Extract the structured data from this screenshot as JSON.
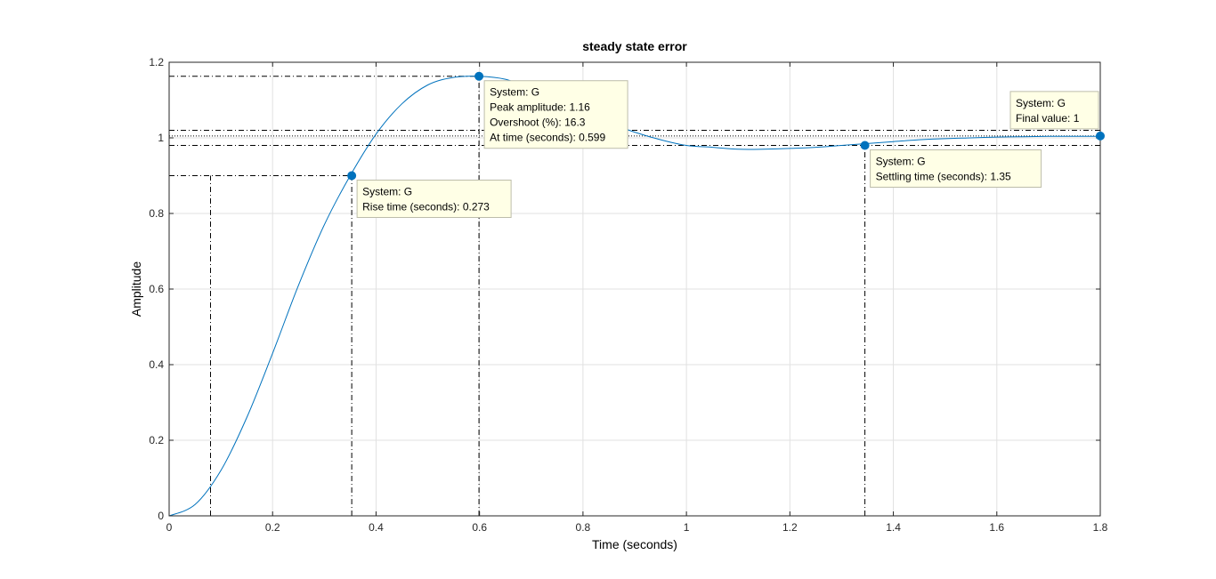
{
  "chart_data": {
    "type": "line",
    "title": "steady state error",
    "xlabel": "Time (seconds)",
    "ylabel": "Amplitude",
    "xlim": [
      0,
      1.8
    ],
    "ylim": [
      0,
      1.2
    ],
    "xticks": [
      "0",
      "0.2",
      "0.4",
      "0.6",
      "0.8",
      "1",
      "1.2",
      "1.4",
      "1.6",
      "1.8"
    ],
    "yticks": [
      "0",
      "0.2",
      "0.4",
      "0.6",
      "0.8",
      "1",
      "1.2"
    ],
    "grid": true,
    "series": [
      {
        "x": [
          0,
          0.05,
          0.1,
          0.15,
          0.2,
          0.25,
          0.3,
          0.35,
          0.4,
          0.45,
          0.5,
          0.55,
          0.6,
          0.65,
          0.7,
          0.75,
          0.8,
          0.85,
          0.9,
          0.95,
          1.0,
          1.05,
          1.1,
          1.15,
          1.2,
          1.25,
          1.3,
          1.35,
          1.4,
          1.45,
          1.5,
          1.55,
          1.6,
          1.65,
          1.7,
          1.75,
          1.8
        ],
        "y": [
          0,
          0.03,
          0.12,
          0.26,
          0.43,
          0.61,
          0.77,
          0.9,
          1.01,
          1.09,
          1.14,
          1.16,
          1.163,
          1.155,
          1.13,
          1.1,
          1.07,
          1.04,
          1.015,
          0.995,
          0.98,
          0.975,
          0.97,
          0.97,
          0.972,
          0.975,
          0.98,
          0.985,
          0.99,
          0.995,
          0.998,
          1.0,
          1.002,
          1.003,
          1.004,
          1.004,
          1.004
        ]
      }
    ],
    "annotations": [
      {
        "x": 0.353,
        "y": 0.9,
        "lines": [
          "System: G",
          "Rise time (seconds): 0.273"
        ]
      },
      {
        "x": 0.599,
        "y": 1.163,
        "lines": [
          "System: G",
          "Peak amplitude: 1.16",
          "Overshoot (%): 16.3",
          "At time (seconds): 0.599"
        ]
      },
      {
        "x": 1.345,
        "y": 0.98,
        "lines": [
          "System: G",
          "Settling time (seconds): 1.35"
        ]
      },
      {
        "x": 1.8,
        "y": 1.005,
        "lines": [
          "System: G",
          "Final value: 1"
        ]
      }
    ],
    "guides": {
      "rise_low": {
        "x": 0.08,
        "y": 0.1
      },
      "rise_high": {
        "x": 0.353,
        "y": 0.9
      },
      "peak": {
        "x": 0.599,
        "y": 1.163
      },
      "settle_band": [
        0.98,
        1.02
      ],
      "settle_x": 1.345,
      "final_y": 1.005
    },
    "colors": {
      "line": "#0072BD",
      "marker": "#0072BD",
      "grid": "#e1e1e1",
      "axis": "#262626",
      "guide": "#000000",
      "tip_fill": "#ffffe6",
      "tip_border": "#bdbdaa"
    }
  }
}
